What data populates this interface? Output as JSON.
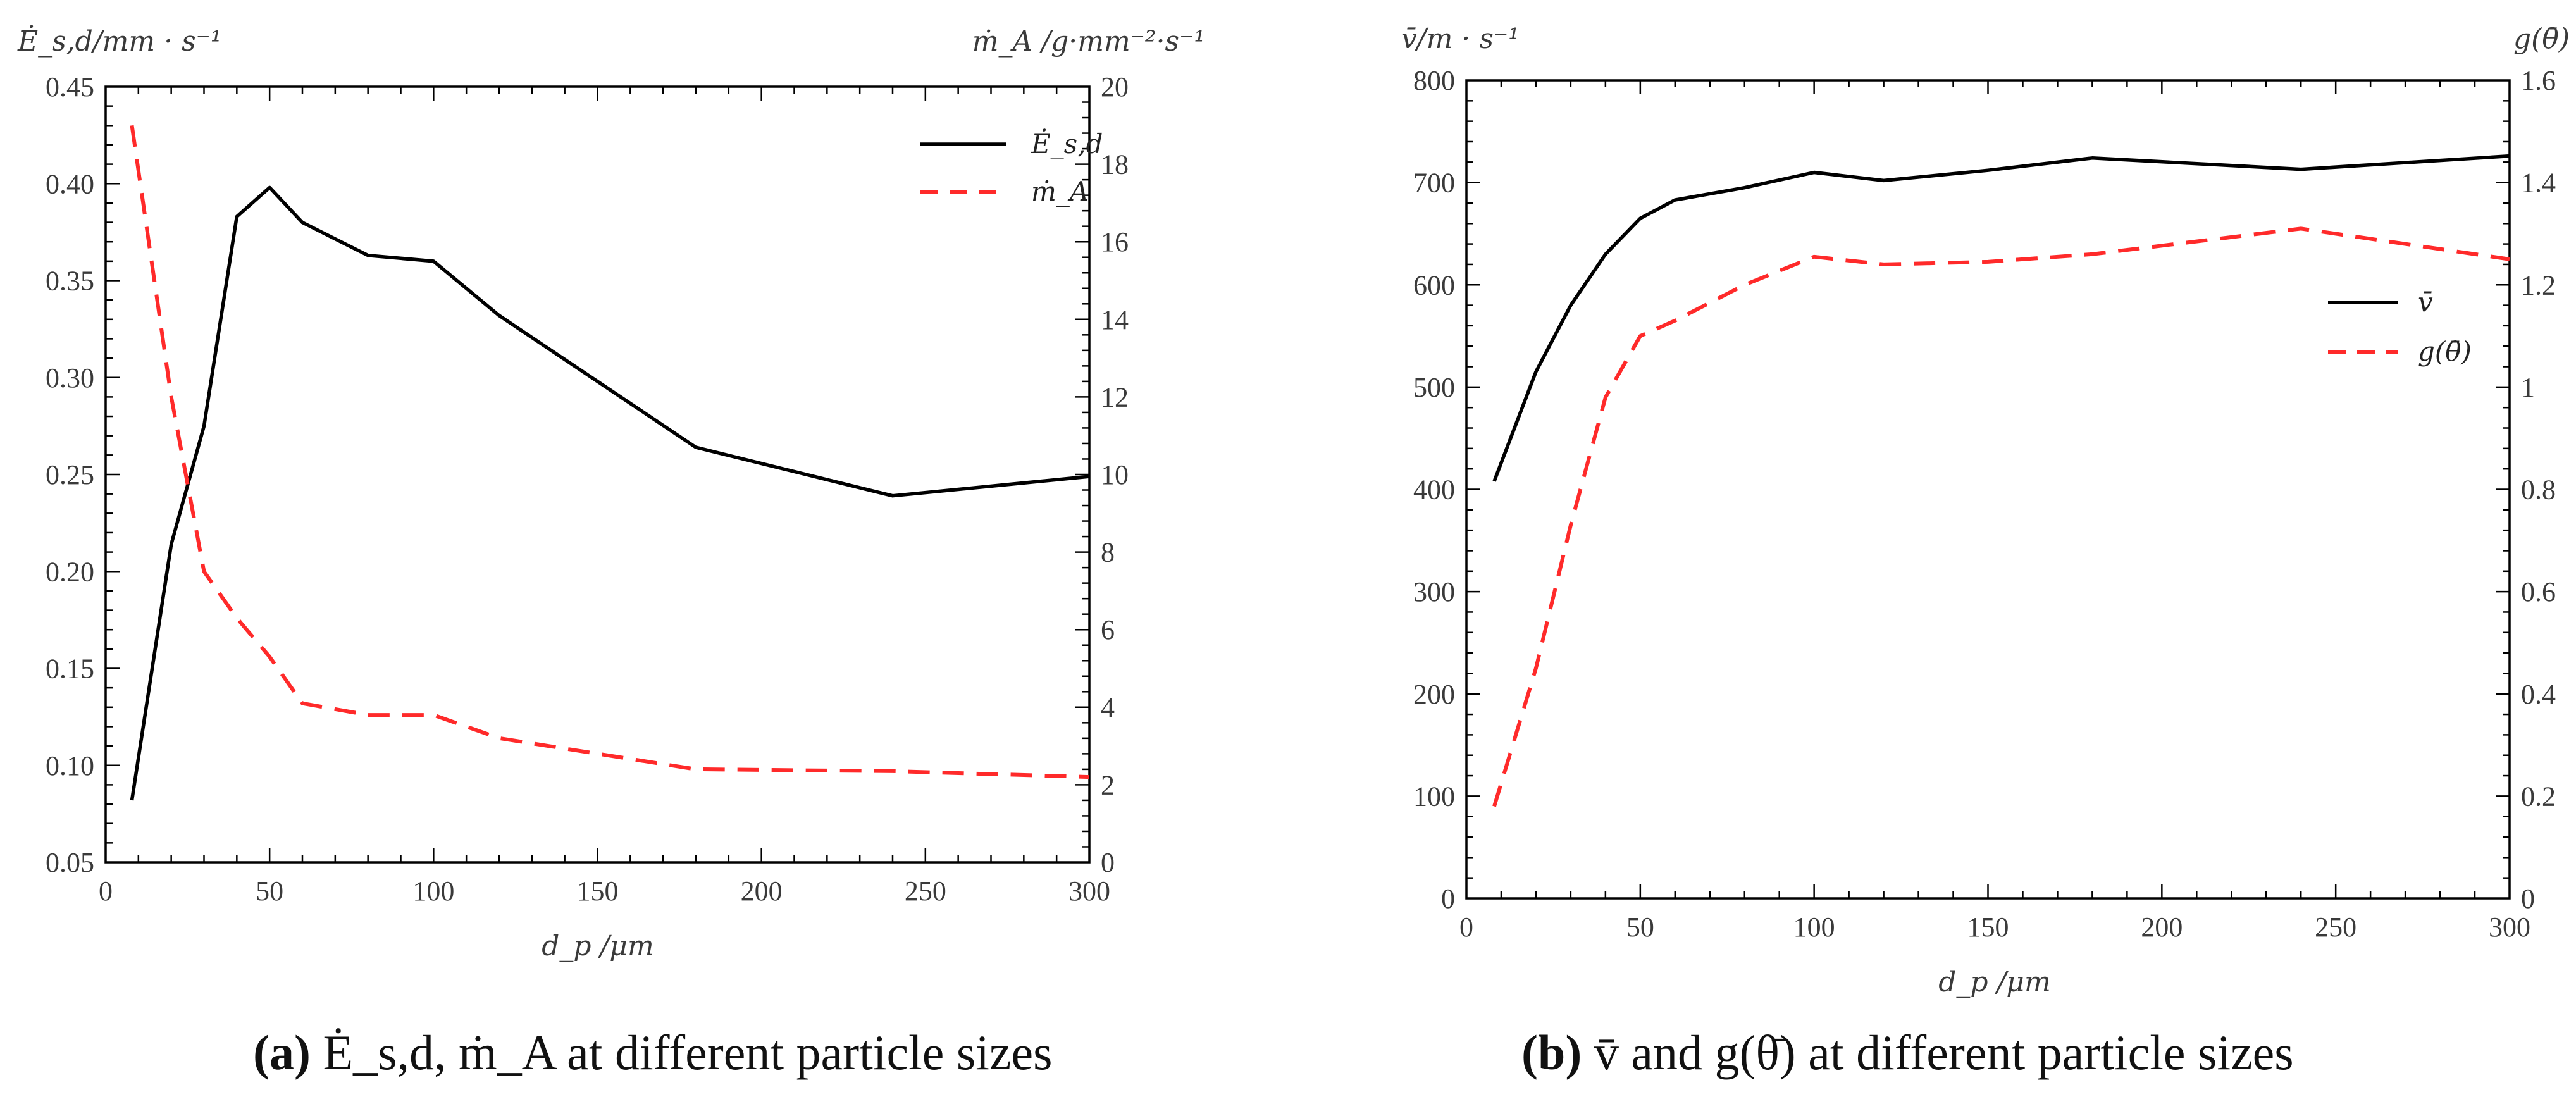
{
  "chart_data": [
    {
      "type": "line",
      "xlabel": "d_p /μm",
      "ylabel_left": "Ė_s,d/mm · s⁻¹",
      "ylabel_right": "ṁ_A /g·mm⁻²·s⁻¹",
      "xlim": [
        0,
        300
      ],
      "ylim_left": [
        0.05,
        0.45
      ],
      "ylim_right": [
        0,
        20
      ],
      "x_ticks": [
        "0",
        "50",
        "100",
        "150",
        "200",
        "250",
        "300"
      ],
      "y_ticks_left": [
        "0.05",
        "0.10",
        "0.15",
        "0.20",
        "0.25",
        "0.30",
        "0.35",
        "0.40",
        "0.45"
      ],
      "y_ticks_right": [
        "0",
        "2",
        "4",
        "6",
        "8",
        "10",
        "12",
        "14",
        "16",
        "18",
        "20"
      ],
      "legend_position": "top-right",
      "series": [
        {
          "name": "Ė_s,d",
          "axis": "left",
          "style": "solid",
          "color": "#000000",
          "x": [
            8,
            20,
            30,
            40,
            50,
            60,
            80,
            100,
            120,
            180,
            240,
            300
          ],
          "values": [
            0.082,
            0.214,
            0.275,
            0.383,
            0.398,
            0.38,
            0.363,
            0.36,
            0.332,
            0.264,
            0.239,
            0.249
          ]
        },
        {
          "name": "ṁ_A",
          "axis": "right",
          "style": "dashed",
          "color": "#ff2a2a",
          "x": [
            8,
            20,
            30,
            40,
            50,
            60,
            80,
            100,
            120,
            180,
            240,
            300
          ],
          "values": [
            19.0,
            12.0,
            7.5,
            6.3,
            5.3,
            4.1,
            3.8,
            3.8,
            3.2,
            2.4,
            2.35,
            2.2
          ]
        }
      ],
      "caption": {
        "bold": "(a)",
        "text": " Ė_s,d,  ṁ_A  at different particle sizes"
      }
    },
    {
      "type": "line",
      "xlabel": "d_p /μm",
      "ylabel_left": "v̄/m · s⁻¹",
      "ylabel_right": "g(θ̄)",
      "xlim": [
        0,
        300
      ],
      "ylim_left": [
        0,
        800
      ],
      "ylim_right": [
        0,
        1.6
      ],
      "x_ticks": [
        "0",
        "50",
        "100",
        "150",
        "200",
        "250",
        "300"
      ],
      "y_ticks_left": [
        "0",
        "100",
        "200",
        "300",
        "400",
        "500",
        "600",
        "700",
        "800"
      ],
      "y_ticks_right": [
        "0",
        "0.2",
        "0.4",
        "0.6",
        "0.8",
        "1",
        "1.2",
        "1.4",
        "1.6"
      ],
      "legend_position": "center-right",
      "series": [
        {
          "name": "v̄",
          "axis": "left",
          "style": "solid",
          "color": "#000000",
          "x": [
            8,
            20,
            30,
            40,
            50,
            60,
            80,
            100,
            120,
            150,
            180,
            240,
            300
          ],
          "values": [
            408,
            515,
            580,
            630,
            665,
            683,
            695,
            710,
            702,
            712,
            724,
            713,
            726
          ]
        },
        {
          "name": "g(θ̄)",
          "axis": "right",
          "style": "dashed",
          "color": "#ff2a2a",
          "x": [
            8,
            20,
            30,
            40,
            50,
            60,
            80,
            100,
            120,
            150,
            180,
            240,
            300
          ],
          "values": [
            0.18,
            0.45,
            0.73,
            0.98,
            1.1,
            1.13,
            1.2,
            1.255,
            1.24,
            1.245,
            1.26,
            1.31,
            1.25
          ]
        }
      ],
      "caption": {
        "bold": "(b)",
        "text": " v̄  and  g(θ̄)  at different particle sizes"
      }
    }
  ]
}
